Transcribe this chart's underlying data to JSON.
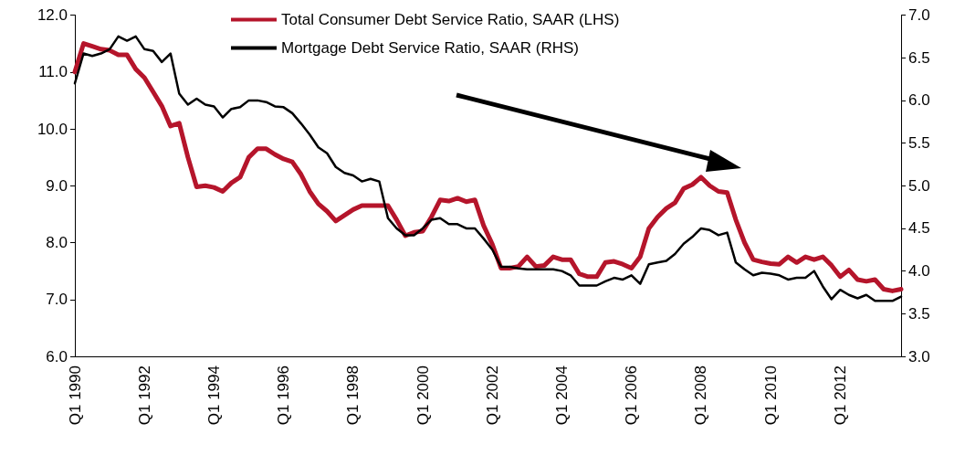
{
  "chart_data": {
    "type": "line",
    "categories": [
      "Q1 1990",
      null,
      null,
      null,
      null,
      null,
      null,
      null,
      "Q1 1992",
      null,
      null,
      null,
      null,
      null,
      null,
      null,
      "Q1 1994",
      null,
      null,
      null,
      null,
      null,
      null,
      null,
      "Q1 1996",
      null,
      null,
      null,
      null,
      null,
      null,
      null,
      "Q1 1998",
      null,
      null,
      null,
      null,
      null,
      null,
      null,
      "Q1 2000",
      null,
      null,
      null,
      null,
      null,
      null,
      null,
      "Q1 2002",
      null,
      null,
      null,
      null,
      null,
      null,
      null,
      "Q1 2004",
      null,
      null,
      null,
      null,
      null,
      null,
      null,
      "Q1 2006",
      null,
      null,
      null,
      null,
      null,
      null,
      null,
      "Q1 2008",
      null,
      null,
      null,
      null,
      null,
      null,
      null,
      "Q1 2010",
      null,
      null,
      null,
      null,
      null,
      null,
      null,
      "Q1 2012",
      null,
      null,
      null,
      null,
      null,
      null,
      null
    ],
    "series": [
      {
        "name": "Total Consumer Debt Service Ratio, SAAR (LHS)",
        "color": "#b5152b",
        "values": [
          11.0,
          11.5,
          11.45,
          11.4,
          11.38,
          11.3,
          11.3,
          11.05,
          10.9,
          10.65,
          10.4,
          10.05,
          10.1,
          9.5,
          8.98,
          9.0,
          8.97,
          8.9,
          9.05,
          9.15,
          9.5,
          9.65,
          9.65,
          9.55,
          9.47,
          9.42,
          9.2,
          8.9,
          8.68,
          8.55,
          8.38,
          8.48,
          8.58,
          8.65,
          8.65,
          8.65,
          8.65,
          8.4,
          8.12,
          8.18,
          8.2,
          8.45,
          8.75,
          8.73,
          8.78,
          8.72,
          8.75,
          8.3,
          7.97,
          7.55,
          7.55,
          7.58,
          7.75,
          7.58,
          7.6,
          7.75,
          7.7,
          7.7,
          7.45,
          7.4,
          7.4,
          7.65,
          7.67,
          7.62,
          7.55,
          7.75,
          8.25,
          8.45,
          8.6,
          8.7,
          8.95,
          9.02,
          9.15,
          9.0,
          8.9,
          8.88,
          8.4,
          8.0,
          7.7,
          7.66,
          7.63,
          7.62,
          7.75,
          7.65,
          7.75,
          7.7,
          7.75,
          7.6,
          7.4,
          7.52,
          7.35,
          7.32,
          7.35,
          7.18,
          7.15,
          7.18
        ]
      },
      {
        "name": "Mortgage Debt Service Ratio, SAAR (RHS)",
        "color": "#000000",
        "axis": "y2",
        "values": [
          6.2,
          6.55,
          6.52,
          6.55,
          6.6,
          6.75,
          6.7,
          6.75,
          6.6,
          6.58,
          6.45,
          6.55,
          6.08,
          5.95,
          6.02,
          5.95,
          5.93,
          5.8,
          5.9,
          5.92,
          6.0,
          6.0,
          5.98,
          5.93,
          5.92,
          5.85,
          5.73,
          5.6,
          5.45,
          5.38,
          5.22,
          5.15,
          5.12,
          5.05,
          5.08,
          5.05,
          4.62,
          4.5,
          4.42,
          4.42,
          4.5,
          4.6,
          4.62,
          4.55,
          4.55,
          4.5,
          4.5,
          4.38,
          4.25,
          4.05,
          4.05,
          4.03,
          4.02,
          4.02,
          4.02,
          4.02,
          4.0,
          3.95,
          3.83,
          3.83,
          3.83,
          3.88,
          3.92,
          3.9,
          3.95,
          3.85,
          4.08,
          4.1,
          4.12,
          4.2,
          4.32,
          4.4,
          4.5,
          4.48,
          4.42,
          4.45,
          4.1,
          4.02,
          3.95,
          3.98,
          3.97,
          3.95,
          3.9,
          3.92,
          3.92,
          4.0,
          3.82,
          3.67,
          3.78,
          3.72,
          3.68,
          3.72,
          3.65,
          3.65,
          3.65,
          3.7
        ]
      }
    ],
    "ylim": [
      6,
      12
    ],
    "yticks": [
      {
        "value": 6,
        "label": "6.0"
      },
      {
        "value": 7,
        "label": "7.0"
      },
      {
        "value": 8,
        "label": "8.0"
      },
      {
        "value": 9,
        "label": "9.0"
      },
      {
        "value": 10,
        "label": "10.0"
      },
      {
        "value": 11,
        "label": "11.0"
      },
      {
        "value": 12,
        "label": "12.0"
      }
    ],
    "y2lim": [
      3,
      7
    ],
    "y2ticks": [
      {
        "value": 3,
        "label": "3.0"
      },
      3.5,
      {
        "value": 4,
        "label": "4.0"
      },
      4.5,
      {
        "value": 5,
        "label": "5.0"
      },
      5.5,
      {
        "value": 6,
        "label": "6.0"
      },
      6.5,
      {
        "value": 7,
        "label": "7.0"
      }
    ],
    "legend": "top",
    "marker": "none",
    "line_style": "solid",
    "grid": false
  }
}
